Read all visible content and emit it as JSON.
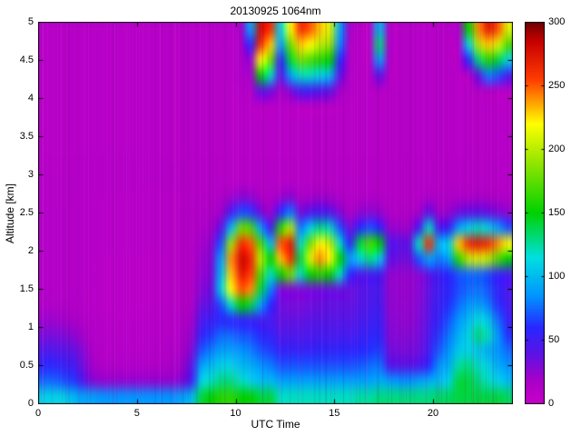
{
  "title": "20130925 1064nm",
  "xlabel": "UTC Time",
  "ylabel": "Altitude [km]",
  "axes": {
    "x_ticks": [
      {
        "value": 0,
        "label": "0"
      },
      {
        "value": 5,
        "label": "5"
      },
      {
        "value": 10,
        "label": "10"
      },
      {
        "value": 15,
        "label": "15"
      },
      {
        "value": 20,
        "label": "20"
      }
    ],
    "y_ticks": [
      {
        "value": 0,
        "label": "0"
      },
      {
        "value": 0.5,
        "label": "0.5"
      },
      {
        "value": 1,
        "label": "1"
      },
      {
        "value": 1.5,
        "label": "1.5"
      },
      {
        "value": 2,
        "label": "2"
      },
      {
        "value": 2.5,
        "label": "2.5"
      },
      {
        "value": 3,
        "label": "3"
      },
      {
        "value": 3.5,
        "label": "3.5"
      },
      {
        "value": 4,
        "label": "4"
      },
      {
        "value": 4.5,
        "label": "4.5"
      },
      {
        "value": 5,
        "label": "5"
      }
    ],
    "colorbar_ticks": [
      {
        "value": 0,
        "label": "0"
      },
      {
        "value": 50,
        "label": "50"
      },
      {
        "value": 100,
        "label": "100"
      },
      {
        "value": 150,
        "label": "150"
      },
      {
        "value": 200,
        "label": "200"
      },
      {
        "value": 250,
        "label": "250"
      },
      {
        "value": 300,
        "label": "300"
      }
    ]
  },
  "chart_data": {
    "type": "heatmap",
    "title": "20130925 1064nm",
    "xlabel": "UTC Time",
    "ylabel": "Altitude [km]",
    "x_range": [
      0,
      24
    ],
    "y_range": [
      0,
      5
    ],
    "value_range": [
      0,
      300
    ],
    "x_step_hours": 0.5,
    "y_step_km": 0.2,
    "legend": "colorbar right, 0-300",
    "grid_on": false,
    "noise_seed": 7,
    "streak_count": 210,
    "colormap_stops": [
      [
        0,
        "#C800C8"
      ],
      [
        18,
        "#AA00C8"
      ],
      [
        40,
        "#5A14E6"
      ],
      [
        60,
        "#2828FF"
      ],
      [
        85,
        "#0096FF"
      ],
      [
        115,
        "#00E0E0"
      ],
      [
        150,
        "#00D200"
      ],
      [
        190,
        "#96E600"
      ],
      [
        220,
        "#FFFF00"
      ],
      [
        255,
        "#FF3C00"
      ],
      [
        285,
        "#C80000"
      ],
      [
        300,
        "#6E0000"
      ]
    ],
    "grid_rows_bottom_to_top": [
      [
        110,
        110,
        110,
        100,
        90,
        90,
        85,
        85,
        85,
        85,
        85,
        85,
        85,
        85,
        90,
        100,
        140,
        150,
        160,
        160,
        150,
        150,
        140,
        140,
        120,
        120,
        120,
        120,
        120,
        120,
        120,
        120,
        125,
        125,
        130,
        130,
        130,
        130,
        130,
        130,
        135,
        135,
        140,
        140,
        140,
        140,
        140,
        135
      ],
      [
        75,
        75,
        70,
        65,
        45,
        30,
        25,
        25,
        25,
        25,
        25,
        25,
        25,
        25,
        30,
        50,
        110,
        120,
        130,
        130,
        120,
        110,
        100,
        100,
        90,
        90,
        90,
        90,
        90,
        90,
        90,
        90,
        90,
        90,
        95,
        90,
        85,
        85,
        90,
        95,
        100,
        110,
        140,
        140,
        130,
        120,
        110,
        100
      ],
      [
        60,
        60,
        55,
        50,
        35,
        20,
        15,
        15,
        15,
        15,
        15,
        15,
        15,
        18,
        22,
        40,
        90,
        100,
        110,
        110,
        100,
        95,
        85,
        80,
        70,
        70,
        70,
        70,
        70,
        70,
        70,
        70,
        72,
        75,
        78,
        45,
        42,
        42,
        45,
        60,
        85,
        95,
        125,
        130,
        120,
        110,
        95,
        85
      ],
      [
        45,
        45,
        42,
        38,
        28,
        16,
        12,
        12,
        12,
        12,
        12,
        12,
        12,
        14,
        18,
        30,
        70,
        80,
        90,
        90,
        85,
        80,
        70,
        65,
        55,
        55,
        55,
        55,
        58,
        58,
        58,
        58,
        60,
        62,
        65,
        35,
        32,
        32,
        35,
        50,
        72,
        85,
        105,
        110,
        105,
        95,
        85,
        75
      ],
      [
        32,
        32,
        30,
        26,
        20,
        13,
        11,
        11,
        11,
        11,
        11,
        11,
        11,
        12,
        15,
        24,
        55,
        65,
        75,
        75,
        70,
        68,
        60,
        55,
        45,
        45,
        45,
        45,
        48,
        48,
        48,
        48,
        52,
        55,
        58,
        30,
        28,
        28,
        32,
        45,
        64,
        78,
        95,
        110,
        130,
        120,
        85,
        62
      ],
      [
        22,
        22,
        20,
        18,
        15,
        12,
        10,
        10,
        10,
        10,
        10,
        10,
        10,
        11,
        13,
        20,
        45,
        52,
        60,
        60,
        58,
        55,
        50,
        48,
        38,
        38,
        38,
        40,
        42,
        42,
        42,
        42,
        46,
        50,
        52,
        28,
        25,
        25,
        30,
        42,
        58,
        70,
        85,
        100,
        115,
        105,
        75,
        54
      ],
      [
        15,
        15,
        14,
        13,
        12,
        10,
        9,
        9,
        9,
        9,
        9,
        9,
        9,
        10,
        12,
        16,
        35,
        42,
        70,
        120,
        150,
        140,
        90,
        60,
        35,
        32,
        32,
        34,
        36,
        38,
        38,
        38,
        42,
        46,
        48,
        26,
        24,
        24,
        28,
        40,
        54,
        62,
        75,
        85,
        90,
        80,
        62,
        48
      ],
      [
        13,
        13,
        12,
        12,
        11,
        10,
        9,
        9,
        9,
        9,
        9,
        9,
        9,
        10,
        11,
        14,
        28,
        36,
        110,
        220,
        250,
        240,
        140,
        80,
        32,
        30,
        30,
        32,
        34,
        36,
        36,
        36,
        40,
        44,
        46,
        25,
        23,
        23,
        27,
        38,
        52,
        58,
        68,
        75,
        78,
        70,
        56,
        46
      ],
      [
        12,
        12,
        12,
        11,
        11,
        10,
        9,
        9,
        9,
        9,
        9,
        9,
        9,
        10,
        11,
        13,
        24,
        32,
        100,
        230,
        270,
        255,
        170,
        120,
        150,
        180,
        120,
        150,
        160,
        150,
        120,
        60,
        45,
        48,
        50,
        26,
        24,
        24,
        28,
        40,
        54,
        60,
        70,
        75,
        75,
        68,
        56,
        48
      ],
      [
        12,
        12,
        12,
        11,
        11,
        10,
        9,
        9,
        9,
        9,
        9,
        9,
        9,
        10,
        11,
        13,
        22,
        30,
        90,
        240,
        280,
        265,
        200,
        150,
        230,
        260,
        140,
        210,
        240,
        220,
        150,
        90,
        110,
        130,
        110,
        40,
        35,
        35,
        70,
        90,
        80,
        90,
        160,
        200,
        210,
        200,
        170,
        150
      ],
      [
        12,
        12,
        12,
        11,
        11,
        10,
        10,
        10,
        10,
        10,
        10,
        10,
        10,
        10,
        11,
        13,
        20,
        26,
        70,
        190,
        260,
        250,
        170,
        100,
        250,
        270,
        120,
        180,
        220,
        200,
        120,
        60,
        140,
        170,
        150,
        45,
        40,
        40,
        120,
        260,
        100,
        110,
        230,
        260,
        270,
        260,
        240,
        220
      ],
      [
        12,
        12,
        12,
        11,
        11,
        10,
        10,
        10,
        10,
        10,
        10,
        10,
        10,
        10,
        11,
        12,
        16,
        20,
        40,
        100,
        180,
        170,
        90,
        50,
        160,
        200,
        80,
        110,
        130,
        120,
        70,
        35,
        60,
        70,
        60,
        25,
        22,
        22,
        50,
        120,
        50,
        55,
        90,
        110,
        120,
        110,
        90,
        70
      ],
      [
        12,
        12,
        12,
        11,
        11,
        10,
        10,
        10,
        10,
        10,
        10,
        10,
        10,
        10,
        11,
        12,
        14,
        16,
        22,
        50,
        70,
        65,
        35,
        22,
        60,
        80,
        35,
        45,
        50,
        45,
        30,
        18,
        25,
        28,
        25,
        15,
        14,
        14,
        20,
        40,
        22,
        24,
        35,
        40,
        42,
        38,
        32,
        26
      ],
      [
        11,
        11,
        11,
        11,
        10,
        10,
        10,
        10,
        10,
        10,
        10,
        10,
        10,
        10,
        10,
        11,
        12,
        13,
        15,
        22,
        28,
        26,
        18,
        14,
        22,
        28,
        18,
        20,
        22,
        20,
        16,
        12,
        14,
        15,
        14,
        11,
        11,
        11,
        13,
        18,
        14,
        14,
        17,
        18,
        19,
        18,
        16,
        14
      ],
      [
        11,
        11,
        11,
        11,
        11,
        11,
        11,
        11,
        11,
        11,
        11,
        11,
        11,
        11,
        11,
        11,
        11,
        11,
        11,
        11,
        11,
        11,
        11,
        11,
        11,
        11,
        11,
        11,
        11,
        11,
        11,
        11,
        11,
        11,
        11,
        11,
        11,
        11,
        11,
        11,
        11,
        11,
        11,
        11,
        11,
        11,
        11,
        11
      ],
      [
        11,
        11,
        11,
        11,
        11,
        11,
        11,
        11,
        11,
        11,
        11,
        11,
        11,
        11,
        11,
        11,
        11,
        11,
        11,
        11,
        11,
        11,
        11,
        11,
        11,
        11,
        11,
        11,
        11,
        11,
        11,
        11,
        11,
        11,
        11,
        11,
        11,
        11,
        11,
        11,
        11,
        11,
        11,
        11,
        11,
        11,
        11,
        11
      ],
      [
        10,
        10,
        10,
        10,
        10,
        10,
        10,
        10,
        10,
        10,
        10,
        10,
        10,
        10,
        10,
        10,
        10,
        10,
        10,
        10,
        10,
        10,
        10,
        10,
        10,
        10,
        10,
        10,
        10,
        10,
        10,
        10,
        10,
        10,
        10,
        10,
        10,
        10,
        10,
        10,
        10,
        10,
        10,
        10,
        10,
        10,
        10,
        10
      ],
      [
        10,
        10,
        10,
        10,
        10,
        10,
        10,
        10,
        10,
        10,
        10,
        10,
        10,
        10,
        10,
        10,
        10,
        10,
        10,
        10,
        10,
        10,
        10,
        10,
        10,
        10,
        10,
        10,
        10,
        10,
        10,
        10,
        10,
        10,
        10,
        10,
        10,
        10,
        10,
        10,
        10,
        10,
        10,
        10,
        10,
        10,
        10,
        10
      ],
      [
        10,
        10,
        10,
        10,
        10,
        10,
        10,
        10,
        10,
        10,
        10,
        10,
        10,
        10,
        10,
        10,
        10,
        10,
        10,
        10,
        10,
        10,
        10,
        10,
        10,
        10,
        10,
        10,
        10,
        10,
        10,
        10,
        10,
        10,
        10,
        10,
        10,
        10,
        10,
        10,
        10,
        10,
        10,
        10,
        10,
        10,
        10,
        10
      ],
      [
        10,
        10,
        10,
        10,
        10,
        10,
        10,
        10,
        10,
        10,
        10,
        10,
        10,
        10,
        10,
        10,
        10,
        10,
        10,
        10,
        10,
        10,
        10,
        10,
        10,
        10,
        10,
        10,
        10,
        10,
        10,
        10,
        10,
        10,
        10,
        10,
        10,
        10,
        10,
        10,
        10,
        10,
        10,
        10,
        10,
        10,
        10,
        10
      ],
      [
        10,
        10,
        10,
        10,
        10,
        10,
        10,
        10,
        10,
        10,
        10,
        10,
        10,
        10,
        10,
        10,
        10,
        10,
        10,
        10,
        12,
        14,
        40,
        35,
        20,
        30,
        50,
        50,
        45,
        40,
        20,
        12,
        10,
        10,
        12,
        10,
        10,
        10,
        10,
        10,
        10,
        10,
        10,
        10,
        12,
        14,
        12,
        10
      ],
      [
        10,
        10,
        10,
        10,
        10,
        10,
        10,
        10,
        10,
        10,
        10,
        10,
        10,
        10,
        10,
        10,
        10,
        10,
        10,
        11,
        14,
        20,
        150,
        120,
        40,
        90,
        120,
        120,
        110,
        100,
        40,
        14,
        10,
        10,
        40,
        12,
        10,
        10,
        10,
        10,
        10,
        10,
        10,
        12,
        40,
        80,
        70,
        50
      ],
      [
        10,
        10,
        10,
        10,
        10,
        10,
        10,
        10,
        10,
        10,
        10,
        10,
        10,
        10,
        10,
        10,
        10,
        10,
        10,
        11,
        16,
        24,
        220,
        180,
        60,
        140,
        180,
        170,
        160,
        150,
        60,
        16,
        10,
        10,
        90,
        14,
        10,
        10,
        10,
        10,
        10,
        10,
        12,
        60,
        130,
        160,
        140,
        110
      ],
      [
        10,
        10,
        10,
        10,
        10,
        10,
        10,
        10,
        10,
        10,
        10,
        10,
        10,
        10,
        10,
        10,
        10,
        10,
        10,
        12,
        18,
        60,
        260,
        230,
        90,
        180,
        230,
        220,
        200,
        190,
        80,
        18,
        10,
        10,
        130,
        16,
        10,
        10,
        10,
        10,
        10,
        10,
        14,
        110,
        200,
        230,
        210,
        170
      ],
      [
        10,
        10,
        10,
        10,
        10,
        10,
        10,
        10,
        10,
        10,
        10,
        10,
        10,
        10,
        10,
        10,
        10,
        10,
        11,
        12,
        20,
        90,
        280,
        260,
        110,
        220,
        260,
        250,
        230,
        210,
        90,
        20,
        10,
        10,
        100,
        14,
        10,
        10,
        10,
        10,
        10,
        10,
        16,
        150,
        240,
        270,
        250,
        210
      ]
    ]
  }
}
